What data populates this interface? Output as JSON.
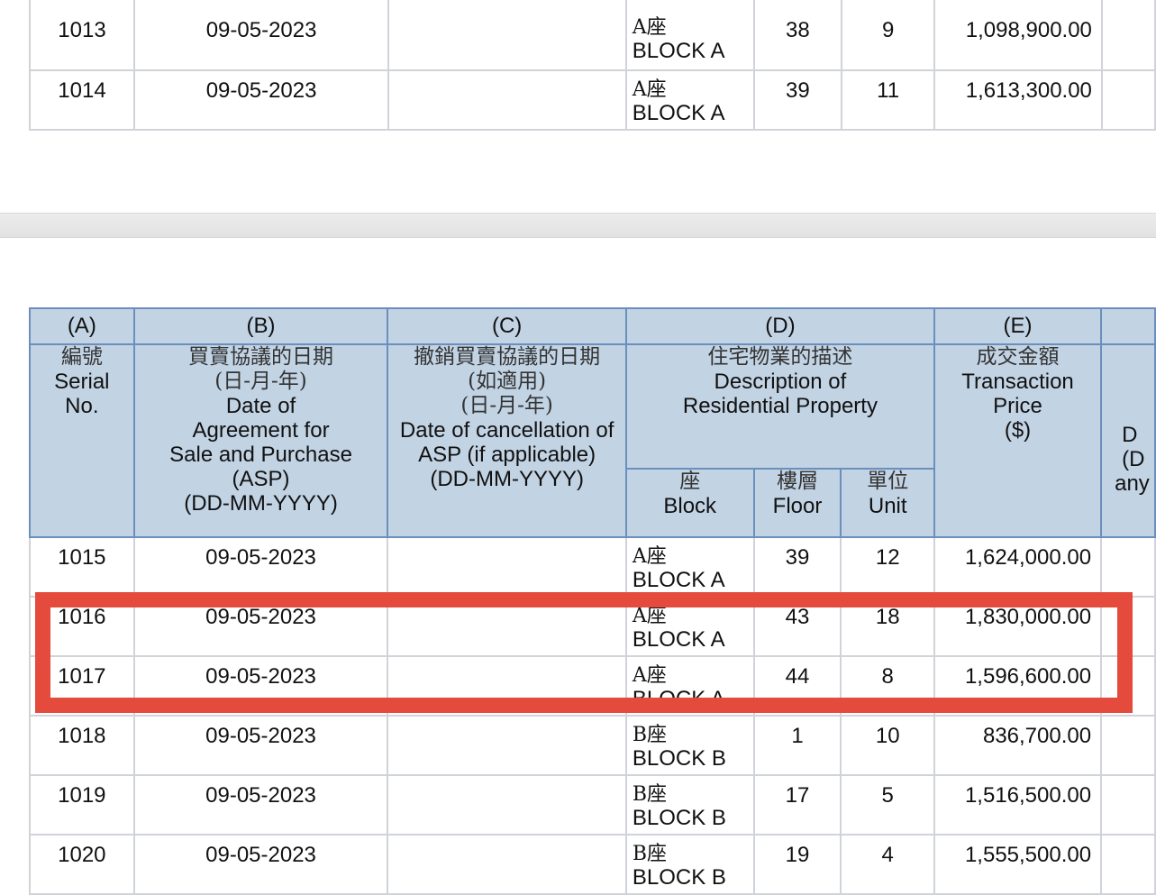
{
  "top_rows": [
    {
      "serial": "1013",
      "date": "09-05-2023",
      "cancel": "",
      "block_cn": "A座",
      "block_en": "BLOCK A",
      "floor": "38",
      "unit": "9",
      "price": "1,098,900.00"
    },
    {
      "serial": "1014",
      "date": "09-05-2023",
      "cancel": "",
      "block_cn": "A座",
      "block_en": "BLOCK A",
      "floor": "39",
      "unit": "11",
      "price": "1,613,300.00"
    }
  ],
  "header": {
    "letters": {
      "a": "(A)",
      "b": "(B)",
      "c": "(C)",
      "d": "(D)",
      "e": "(E)"
    },
    "serial": {
      "zh": "編號",
      "l1": "Serial",
      "l2": "No."
    },
    "asp_date": {
      "zh1": "買賣協議的日期",
      "zh2": "(日-月-年)",
      "l1": "Date of",
      "l2": "Agreement for",
      "l3": "Sale and Purchase",
      "l4": "(ASP)",
      "l5": "(DD-MM-YYYY)"
    },
    "cancel_date": {
      "zh1": "撤銷買賣協議的日期",
      "zh2": "(如適用)",
      "zh3": "(日-月-年)",
      "l1": "Date of cancellation of",
      "l2": "ASP (if applicable)",
      "l3": "(DD-MM-YYYY)"
    },
    "description": {
      "zh": "住宅物業的描述",
      "l1": "Description of",
      "l2": "Residential Property"
    },
    "block": {
      "zh": "座",
      "en": "Block"
    },
    "floor": {
      "zh": "樓層",
      "en": "Floor"
    },
    "unit": {
      "zh": "單位",
      "en": "Unit"
    },
    "price": {
      "zh": "成交金額",
      "l1": "Transaction",
      "l2": "Price",
      "l3": "($)"
    },
    "partial": {
      "l1": "D",
      "l2": "(D",
      "l3": "any"
    }
  },
  "rows": [
    {
      "serial": "1015",
      "date": "09-05-2023",
      "cancel": "",
      "block_cn": "A座",
      "block_en": "BLOCK A",
      "floor": "39",
      "unit": "12",
      "price": "1,624,000.00"
    },
    {
      "serial": "1016",
      "date": "09-05-2023",
      "cancel": "",
      "block_cn": "A座",
      "block_en": "BLOCK A",
      "floor": "43",
      "unit": "18",
      "price": "1,830,000.00"
    },
    {
      "serial": "1017",
      "date": "09-05-2023",
      "cancel": "",
      "block_cn": "A座",
      "block_en": "BLOCK A",
      "floor": "44",
      "unit": "8",
      "price": "1,596,600.00"
    },
    {
      "serial": "1018",
      "date": "09-05-2023",
      "cancel": "",
      "block_cn": "B座",
      "block_en": "BLOCK B",
      "floor": "1",
      "unit": "10",
      "price": "836,700.00"
    },
    {
      "serial": "1019",
      "date": "09-05-2023",
      "cancel": "",
      "block_cn": "B座",
      "block_en": "BLOCK B",
      "floor": "17",
      "unit": "5",
      "price": "1,516,500.00"
    },
    {
      "serial": "1020",
      "date": "09-05-2023",
      "cancel": "",
      "block_cn": "B座",
      "block_en": "BLOCK B",
      "floor": "19",
      "unit": "4",
      "price": "1,555,500.00"
    }
  ],
  "colors": {
    "header_bg": "#c2d3e4",
    "header_border": "#6b8fbd",
    "highlight": "#e54b3c"
  }
}
